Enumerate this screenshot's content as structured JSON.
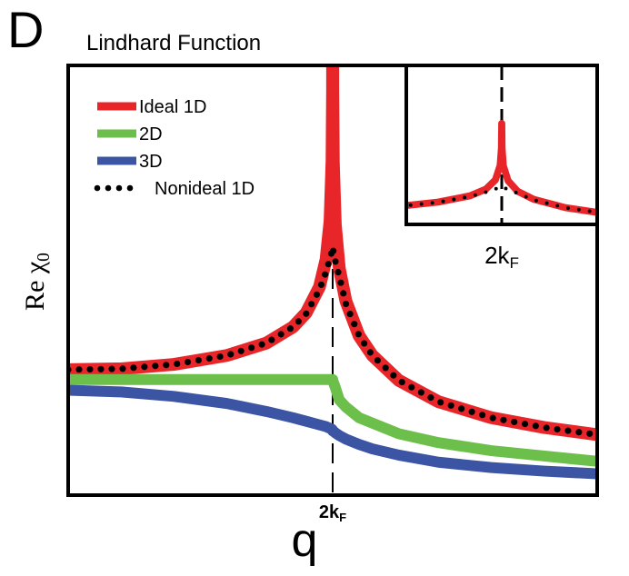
{
  "chart_data": {
    "type": "line",
    "panel": "D",
    "title": "Lindhard Function",
    "xlabel": "q",
    "ylabel": "Re χ0",
    "x": [
      0,
      0.4,
      0.8,
      1.2,
      1.5,
      1.7,
      1.8,
      1.9,
      1.95,
      1.98,
      1.995,
      1.999,
      1.9999,
      2.0001,
      2.001,
      2.005,
      2.02,
      2.05,
      2.1,
      2.2,
      2.3,
      2.5,
      2.8,
      3.2,
      3.6,
      4
    ],
    "series": [
      {
        "name": "Ideal 1D",
        "color": "#e8262a",
        "values": [
          1.0,
          1.01,
          1.06,
          1.16,
          1.3,
          1.48,
          1.64,
          1.93,
          2.24,
          2.67,
          3.35,
          4.15,
          5.3,
          5.3,
          4.14,
          3.33,
          2.63,
          2.14,
          1.77,
          1.38,
          1.16,
          0.88,
          0.64,
          0.46,
          0.35,
          0.27
        ]
      },
      {
        "name": "2D",
        "color": "#6cbf4a",
        "values": [
          0.89,
          0.89,
          0.89,
          0.89,
          0.89,
          0.89,
          0.89,
          0.89,
          0.89,
          0.89,
          0.89,
          0.89,
          0.89,
          0.89,
          0.88,
          0.86,
          0.8,
          0.66,
          0.58,
          0.46,
          0.4,
          0.28,
          0.18,
          0.09,
          0.03,
          -0.03
        ]
      },
      {
        "name": "3D",
        "color": "#3b54a4",
        "values": [
          0.77,
          0.75,
          0.7,
          0.62,
          0.53,
          0.46,
          0.42,
          0.38,
          0.36,
          0.34,
          0.33,
          0.32,
          0.32,
          0.32,
          0.31,
          0.31,
          0.29,
          0.26,
          0.22,
          0.16,
          0.11,
          0.04,
          -0.04,
          -0.1,
          -0.14,
          -0.17
        ]
      },
      {
        "name": "Nonideal 1D",
        "color": "#000000",
        "dotted": true,
        "values": [
          1.0,
          1.01,
          1.06,
          1.16,
          1.3,
          1.48,
          1.63,
          1.9,
          2.1,
          2.25,
          2.34,
          2.37,
          2.38,
          2.38,
          2.37,
          2.33,
          2.22,
          2.05,
          1.74,
          1.38,
          1.16,
          0.88,
          0.64,
          0.46,
          0.35,
          0.27
        ]
      }
    ],
    "xlim": [
      0,
      4
    ],
    "ylim": [
      -0.41,
      4.42
    ],
    "xticks": [
      {
        "value": 2,
        "label": "2kF"
      }
    ],
    "inset": {
      "xlim": [
        1.7,
        2.3
      ],
      "ylim": [
        0.6,
        8
      ],
      "series_shown": [
        0,
        3
      ],
      "xticks": [
        {
          "value": 2,
          "label": "2kF"
        }
      ]
    }
  }
}
